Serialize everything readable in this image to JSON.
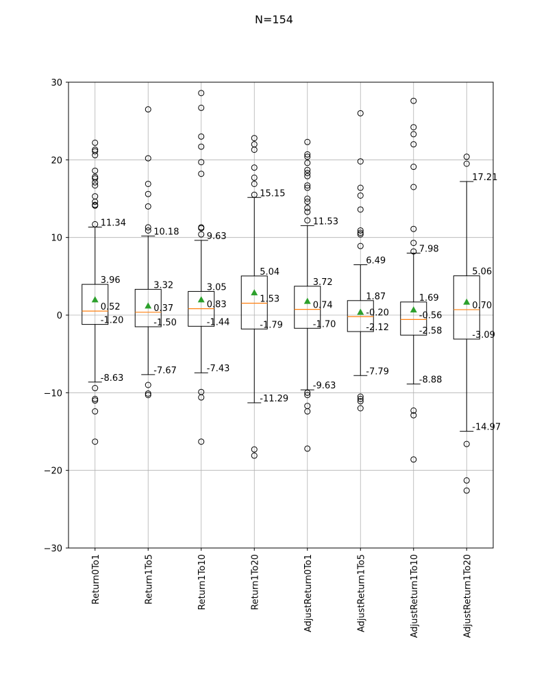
{
  "chart_data": {
    "type": "box",
    "title": "N=154",
    "ylim": [
      -30,
      30
    ],
    "yticks": [
      -30,
      -20,
      -10,
      0,
      10,
      20,
      30
    ],
    "grid": true,
    "colors": {
      "median": "#ff7f0e",
      "mean": "#2ca02c",
      "box": "#000000"
    },
    "categories": [
      "Return0To1",
      "Return1To5",
      "Return1To10",
      "Return1To20",
      "AdjustReturn0To1",
      "AdjustReturn1To5",
      "AdjustReturn1To10",
      "AdjustReturn1To20"
    ],
    "boxes": [
      {
        "q1": -1.2,
        "median": 0.52,
        "q3": 3.96,
        "whisker_low": -8.63,
        "whisker_high": 11.34,
        "mean": 2.0,
        "labels": {
          "q1": "-1.20",
          "median": "0.52",
          "q3": "3.96",
          "whisker_low": "-8.63",
          "whisker_high": "11.34"
        },
        "fliers": [
          22.2,
          21.3,
          21.1,
          20.6,
          18.6,
          17.8,
          17.6,
          17.1,
          16.7,
          15.3,
          14.6,
          14.2,
          14.1,
          11.7,
          -9.4,
          -10.8,
          -11.0,
          -12.4,
          -16.3
        ]
      },
      {
        "q1": -1.5,
        "median": 0.37,
        "q3": 3.32,
        "whisker_low": -7.67,
        "whisker_high": 10.18,
        "mean": 1.2,
        "labels": {
          "q1": "-1.50",
          "median": "0.37",
          "q3": "3.32",
          "whisker_low": "-7.67",
          "whisker_high": "10.18"
        },
        "fliers": [
          26.5,
          20.2,
          16.9,
          15.6,
          14.0,
          11.3,
          10.9,
          -9.0,
          -10.1,
          -10.3
        ]
      },
      {
        "q1": -1.44,
        "median": 0.83,
        "q3": 3.05,
        "whisker_low": -7.43,
        "whisker_high": 9.63,
        "mean": 2.0,
        "labels": {
          "q1": "-1.44",
          "median": "0.83",
          "q3": "3.05",
          "whisker_low": "-7.43",
          "whisker_high": "9.63"
        },
        "fliers": [
          28.6,
          26.7,
          23.0,
          21.7,
          19.7,
          18.2,
          11.3,
          11.2,
          10.4,
          -9.9,
          -10.6,
          -16.3
        ]
      },
      {
        "q1": -1.79,
        "median": 1.53,
        "q3": 5.04,
        "whisker_low": -11.29,
        "whisker_high": 15.15,
        "mean": 2.9,
        "labels": {
          "q1": "-1.79",
          "median": "1.53",
          "q3": "5.04",
          "whisker_low": "-11.29",
          "whisker_high": "15.15"
        },
        "fliers": [
          22.8,
          22.0,
          21.3,
          19.0,
          17.7,
          16.9,
          15.5,
          -17.3,
          -18.1
        ]
      },
      {
        "q1": -1.7,
        "median": 0.74,
        "q3": 3.72,
        "whisker_low": -9.63,
        "whisker_high": 11.53,
        "mean": 1.8,
        "labels": {
          "q1": "-1.70",
          "median": "0.74",
          "q3": "3.72",
          "whisker_low": "-9.63",
          "whisker_high": "11.53"
        },
        "fliers": [
          22.3,
          20.7,
          20.4,
          19.6,
          18.7,
          18.3,
          17.9,
          16.7,
          16.4,
          15.0,
          14.6,
          13.8,
          13.3,
          12.2,
          -10.0,
          -10.3,
          -11.7,
          -12.4,
          -17.2
        ]
      },
      {
        "q1": -2.12,
        "median": -0.2,
        "q3": 1.87,
        "whisker_low": -7.79,
        "whisker_high": 6.49,
        "mean": 0.4,
        "labels": {
          "q1": "-2.12",
          "median": "-0.20",
          "q3": "1.87",
          "whisker_low": "-7.79",
          "whisker_high": "6.49"
        },
        "fliers": [
          26.0,
          19.8,
          16.4,
          15.4,
          13.6,
          10.9,
          10.6,
          10.4,
          8.9,
          -10.5,
          -10.8,
          -11.1,
          -12.0
        ]
      },
      {
        "q1": -2.58,
        "median": -0.56,
        "q3": 1.69,
        "whisker_low": -8.88,
        "whisker_high": 7.98,
        "mean": 0.7,
        "labels": {
          "q1": "-2.58",
          "median": "-0.56",
          "q3": "1.69",
          "whisker_low": "-8.88",
          "whisker_high": "7.98"
        },
        "fliers": [
          27.6,
          24.2,
          23.3,
          22.0,
          19.1,
          16.5,
          11.1,
          9.3,
          8.2,
          -12.3,
          -12.9,
          -18.6
        ]
      },
      {
        "q1": -3.09,
        "median": 0.7,
        "q3": 5.06,
        "whisker_low": -14.97,
        "whisker_high": 17.21,
        "mean": 1.7,
        "labels": {
          "q1": "-3.09",
          "median": "0.70",
          "q3": "5.06",
          "whisker_low": "-14.97",
          "whisker_high": "17.21"
        },
        "fliers": [
          20.4,
          19.5,
          -16.6,
          -21.3,
          -22.6
        ]
      }
    ]
  }
}
